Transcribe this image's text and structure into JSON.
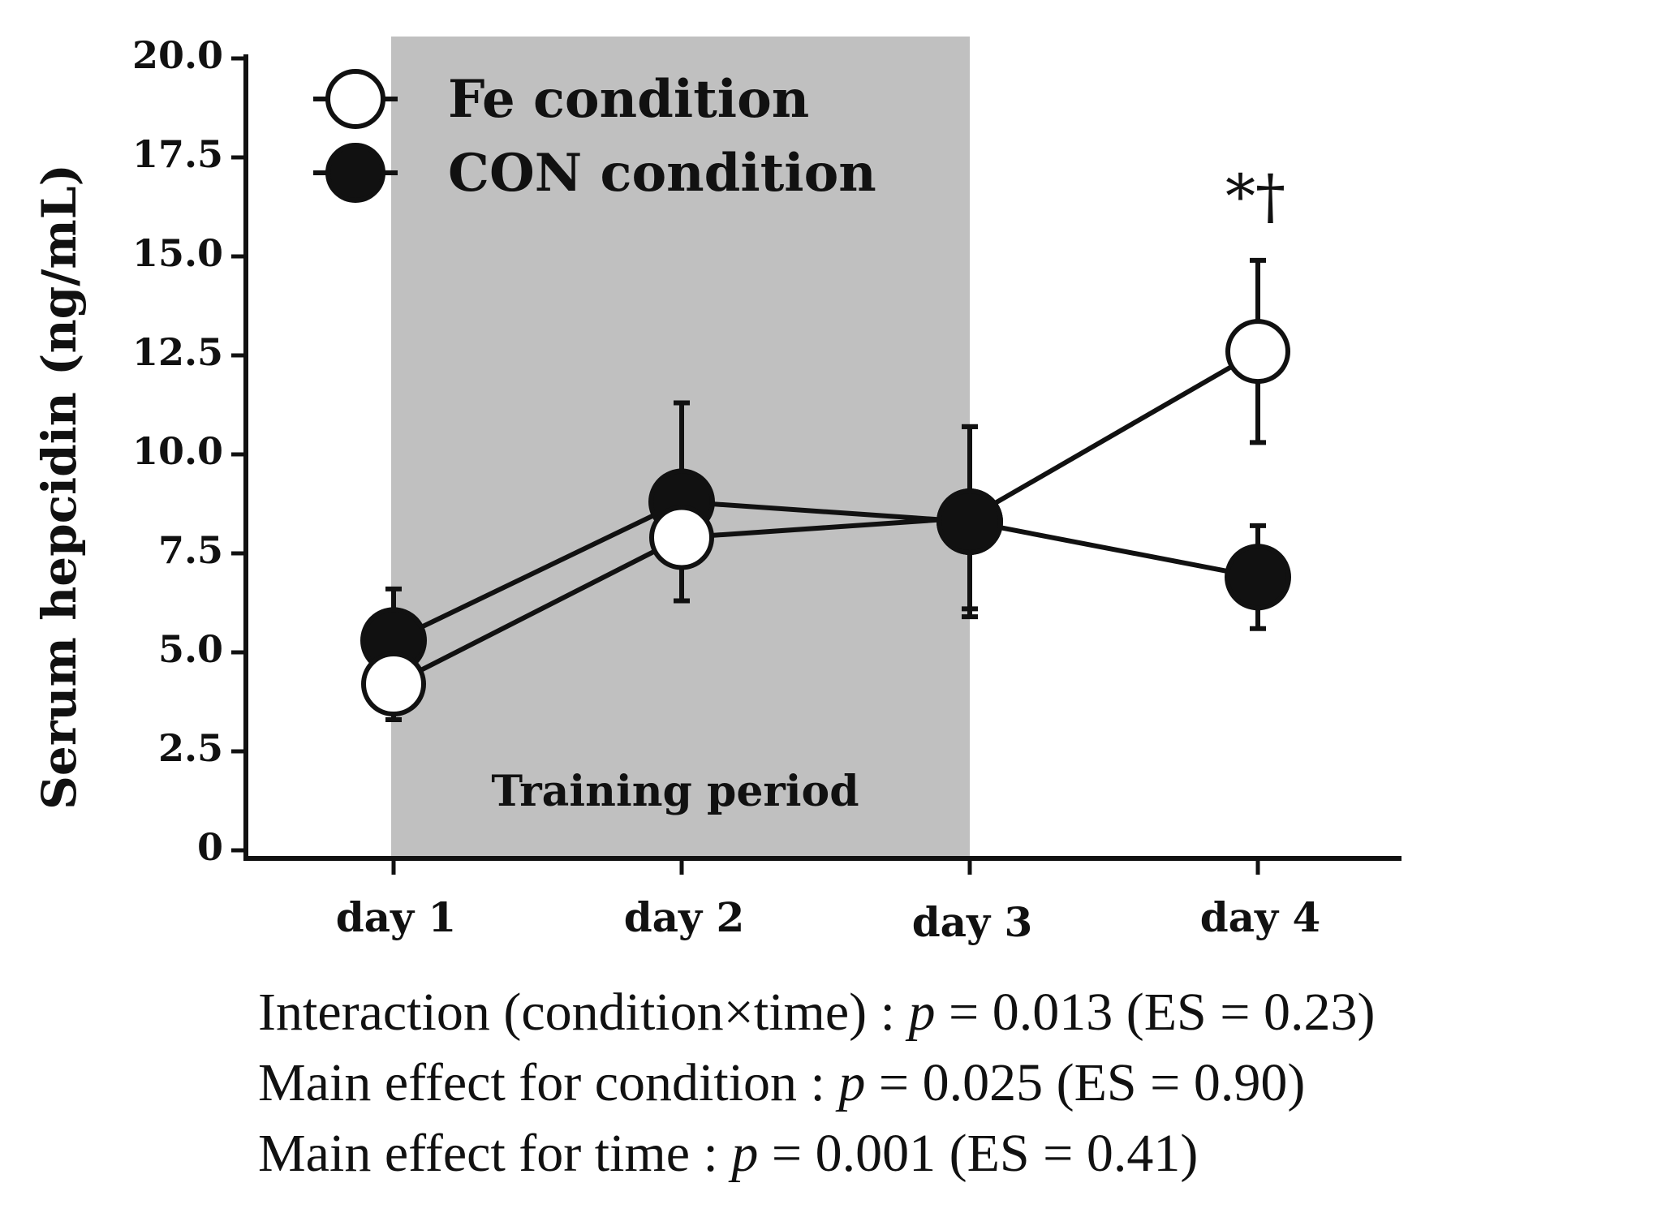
{
  "chart_data": {
    "type": "line",
    "title": "",
    "xlabel": "",
    "ylabel": "Serum hepcidin (ng/mL)",
    "ylim": [
      0,
      20
    ],
    "yticks": [
      "0",
      "2.5",
      "5.0",
      "7.5",
      "10.0",
      "12.5",
      "15.0",
      "17.5",
      "20.0"
    ],
    "categories": [
      "day 1",
      "day 2",
      "day 3",
      "day 4"
    ],
    "shaded_region": {
      "from": "day 1",
      "to": "day 3",
      "label": "Training period",
      "color": "#c0c0c0"
    },
    "series": [
      {
        "name": "Fe condition",
        "marker": "open-circle",
        "values": [
          4.2,
          7.9,
          8.4,
          12.6
        ],
        "error": [
          0.9,
          1.6,
          2.3,
          2.3
        ]
      },
      {
        "name": "CON condition",
        "marker": "filled-circle",
        "values": [
          5.3,
          8.8,
          8.3,
          6.9
        ],
        "error": [
          1.3,
          2.5,
          2.4,
          1.3
        ]
      }
    ],
    "annotations": [
      {
        "category": "day 4",
        "text": "*†"
      }
    ]
  },
  "stats": {
    "interaction": {
      "prefix": "Interaction (condition",
      "times": "×",
      "suffix": "time) : ",
      "p_symbol": "p",
      "value": " = 0.013 (ES = 0.23)"
    },
    "condition": {
      "prefix": "Main effect for condition : ",
      "p_symbol": "p",
      "value": " = 0.025 (ES = 0.90)"
    },
    "time": {
      "prefix": "Main effect for time : ",
      "p_symbol": "p",
      "value": " = 0.001 (ES = 0.41)"
    }
  }
}
